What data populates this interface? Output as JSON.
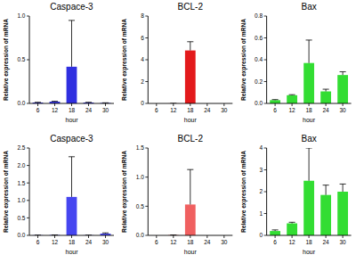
{
  "chart_data": [
    {
      "type": "bar",
      "title": "Caspace-3",
      "xlabel": "hour",
      "ylabel": "Relative expression of mRNA",
      "categories": [
        "6",
        "12",
        "18",
        "24",
        "30"
      ],
      "values": [
        0.01,
        0.02,
        0.42,
        0.01,
        0.005
      ],
      "errors": [
        0.003,
        0.005,
        0.53,
        0.003,
        0.002
      ],
      "color": "#2f2fe0",
      "grid": false,
      "ylim": [
        0,
        1.0
      ],
      "yticks": [
        {
          "value": 0,
          "label": "0.0"
        },
        0.5,
        {
          "value": 1,
          "label": "1.0"
        }
      ]
    },
    {
      "type": "bar",
      "title": "BCL-2",
      "xlabel": "hour",
      "ylabel": "Relative expression of mRNA",
      "categories": [
        "6",
        "12",
        "18",
        "24",
        "30"
      ],
      "values": [
        0,
        0.005,
        4.85,
        0,
        0
      ],
      "errors": [
        0,
        0.002,
        0.8,
        0,
        0
      ],
      "color": "#e31a1c",
      "grid": false,
      "ylim": [
        0,
        8
      ],
      "yticks": [
        0,
        2,
        4,
        6,
        8
      ]
    },
    {
      "type": "bar",
      "title": "Bax",
      "xlabel": "hour",
      "ylabel": "Relative expression of mRNA",
      "categories": [
        "6",
        "12",
        "18",
        "24",
        "30"
      ],
      "values": [
        0.03,
        0.075,
        0.37,
        0.11,
        0.26
      ],
      "errors": [
        0.005,
        0.005,
        0.21,
        0.02,
        0.03
      ],
      "color": "#33dd33",
      "grid": false,
      "ylim": [
        0,
        0.8
      ],
      "yticks": [
        {
          "value": 0,
          "label": "0.0"
        },
        0.2,
        0.4,
        0.6,
        0.8
      ]
    },
    {
      "type": "bar",
      "title": "Caspace-3",
      "xlabel": "hour",
      "ylabel": "Relative expression of mRNA",
      "categories": [
        "6",
        "12",
        "18",
        "24",
        "30"
      ],
      "values": [
        0.005,
        0.01,
        1.1,
        0.005,
        0.05
      ],
      "errors": [
        0.002,
        0.003,
        1.15,
        0.002,
        0.02
      ],
      "color": "#4646f0",
      "grid": false,
      "ylim": [
        0,
        2.5
      ],
      "yticks": [
        {
          "value": 0,
          "label": "0.0"
        },
        0.5,
        {
          "value": 1,
          "label": "1.0"
        },
        1.5,
        {
          "value": 2,
          "label": "2.0"
        },
        2.5
      ]
    },
    {
      "type": "bar",
      "title": "BCL-2",
      "xlabel": "hour",
      "ylabel": "Relative expression of mRNA",
      "categories": [
        "6",
        "12",
        "18",
        "24",
        "30"
      ],
      "values": [
        0,
        0.005,
        0.53,
        0,
        0
      ],
      "errors": [
        0,
        0.002,
        0.6,
        0,
        0
      ],
      "color": "#f06060",
      "grid": false,
      "ylim": [
        0,
        1.5
      ],
      "yticks": [
        {
          "value": 0,
          "label": "0.0"
        },
        0.5,
        {
          "value": 1,
          "label": "1.0"
        },
        1.5
      ]
    },
    {
      "type": "bar",
      "title": "Bax",
      "xlabel": "hour",
      "ylabel": "Relative expression of mRNA",
      "categories": [
        "6",
        "12",
        "18",
        "24",
        "30"
      ],
      "values": [
        0.2,
        0.55,
        2.5,
        1.85,
        2.0
      ],
      "errors": [
        0.05,
        0.05,
        1.5,
        0.45,
        0.35
      ],
      "color": "#33dd33",
      "grid": false,
      "ylim": [
        0,
        4
      ],
      "yticks": [
        0,
        1,
        2,
        3,
        4
      ]
    }
  ]
}
